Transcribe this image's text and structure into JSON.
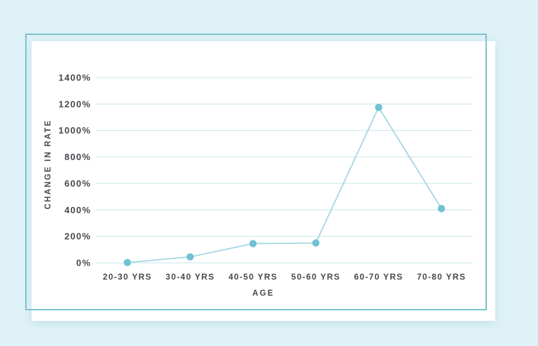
{
  "window": {
    "background_color": "#ddf1f6"
  },
  "card": {
    "background_color": "#ffffff",
    "frame_color": "#7cc3cf"
  },
  "chart_data": {
    "type": "line",
    "title": "",
    "categories": [
      "20-30 YRS",
      "30-40 YRS",
      "40-50 YRS",
      "50-60 YRS",
      "60-70 YRS",
      "70-80 YRS"
    ],
    "values": [
      2,
      45,
      145,
      150,
      1175,
      410
    ],
    "xlabel": "AGE",
    "ylabel": "CHANGE IN RATE",
    "y_tick_values": [
      0,
      200,
      400,
      600,
      800,
      1000,
      1200,
      1400
    ],
    "y_tick_labels": [
      "0%",
      "200%",
      "400%",
      "600%",
      "800%",
      "1000%",
      "1200%",
      "1400%"
    ],
    "ylim": [
      0,
      1400
    ],
    "grid": true,
    "legend_position": "none",
    "colors": {
      "line": "#a2d8e3",
      "point": "#6fc2d4",
      "grid": "#d9edf1",
      "text": "#45494d"
    }
  }
}
